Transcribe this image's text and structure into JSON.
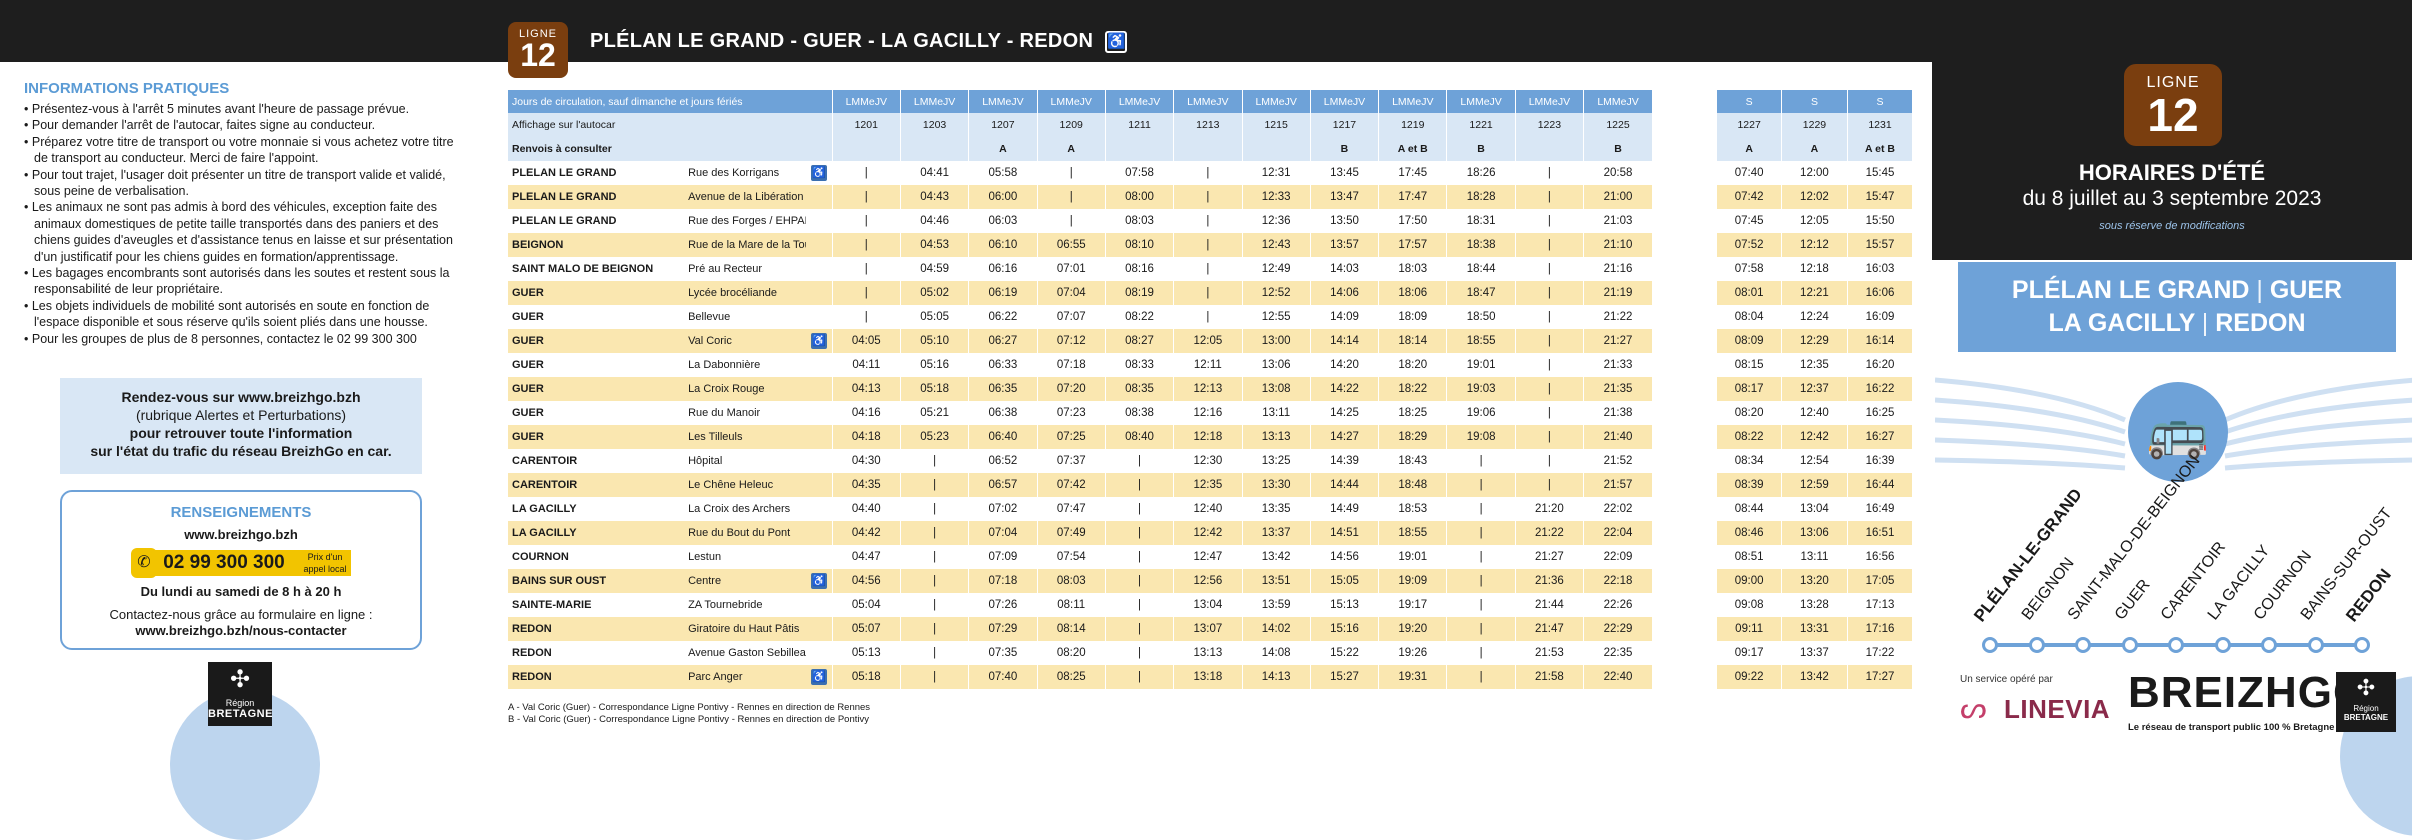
{
  "header": {
    "ligne_label": "LIGNE",
    "ligne_number": "12",
    "route_title": "PLÉLAN LE GRAND - GUER - LA GACILLY - REDON",
    "accessible_icon": "wheelchair-icon"
  },
  "right_panel": {
    "ligne_label": "LIGNE",
    "ligne_number": "12",
    "season_title": "HORAIRES D'ÉTÉ",
    "season_dates": "du 8 juillet au 3 septembre 2023",
    "season_note": "sous réserve de modifications",
    "dest1a": "PLÉLAN LE GRAND",
    "dest1b": "GUER",
    "dest2a": "LA GACILLY",
    "dest2b": "REDON",
    "sep": "|",
    "stops": [
      "PLÉLAN-LE-GRAND",
      "BEIGNON",
      "SAINT-MALO-DE-BEIGNON",
      "GUER",
      "CARENTOIR",
      "LA GACILLY",
      "COURNON",
      "BAINS-SUR-OUST",
      "REDON"
    ],
    "operated_by": "Un service opéré par",
    "operator": "LINEVIA",
    "brand": "BREIZHGO",
    "brand_tagline": "Le réseau de transport public 100 % Bretagne",
    "region_small": "Région",
    "region_name": "BRETAGNE"
  },
  "info": {
    "title": "INFORMATIONS PRATIQUES",
    "items": [
      "Présentez-vous à l'arrêt 5 minutes avant l'heure de passage prévue.",
      "Pour demander l'arrêt de l'autocar, faites signe au conducteur.",
      "Préparez votre titre de transport ou votre monnaie si vous achetez votre titre de transport au conducteur. Merci de faire l'appoint.",
      "Pour tout trajet, l'usager doit présenter un titre de transport valide et validé, sous peine de verbalisation.",
      "Les animaux ne sont pas admis à bord des véhicules, exception faite des animaux domestiques de petite taille transportés dans des paniers et des chiens guides d'aveugles et d'assistance tenus en laisse et sur présentation d'un justificatif pour les chiens guides en formation/apprentissage.",
      "Les bagages encombrants sont autorisés dans les soutes et restent sous la responsabilité de leur propriétaire.",
      "Les objets individuels de mobilité sont autorisés en soute en fonction de l'espace disponible et sous réserve qu'ils soient pliés dans une housse.",
      "Pour les groupes de plus de 8 personnes, contactez le 02 99 300 300"
    ],
    "web_box_line1": "Rendez-vous sur www.breizhgo.bzh",
    "web_box_line2": "(rubrique Alertes et Perturbations)",
    "web_box_line3": "pour retrouver toute l'information",
    "web_box_line4": "sur l'état du trafic du réseau BreizhGo en car.",
    "rens_title": "RENSEIGNEMENTS",
    "rens_www": "www.breizhgo.bzh",
    "phone": "02 99 300 300",
    "phone_note": "Prix d'un appel local",
    "hours": "Du lundi au samedi de 8 h à 20 h",
    "contact_line1": "Contactez-nous grâce au formulaire en ligne :",
    "contact_line2": "www.breizhgo.bzh/nous-contacter",
    "region_small": "Région",
    "region_name": "BRETAGNE"
  },
  "timetable": {
    "row_label_days": "Jours de circulation, sauf dimanche et jours fériés",
    "row_label_display": "Affichage sur l'autocar",
    "row_label_refs": "Renvois à consulter",
    "main_days": [
      "LMMeJV",
      "LMMeJV",
      "LMMeJV",
      "LMMeJV",
      "LMMeJV",
      "LMMeJV",
      "LMMeJV",
      "LMMeJV",
      "LMMeJV",
      "LMMeJV",
      "LMMeJV",
      "LMMeJV"
    ],
    "main_codes": [
      "1201",
      "1203",
      "1207",
      "1209",
      "1211",
      "1213",
      "1215",
      "1217",
      "1219",
      "1221",
      "1223",
      "1225"
    ],
    "main_refs": [
      "",
      "",
      "A",
      "A",
      "",
      "",
      "",
      "B",
      "A et B",
      "B",
      "",
      "B"
    ],
    "sat_days": [
      "S",
      "S",
      "S"
    ],
    "sat_codes": [
      "1227",
      "1229",
      "1231"
    ],
    "sat_refs": [
      "A",
      "A",
      "A et B"
    ],
    "rows": [
      {
        "town": "PLELAN LE GRAND",
        "stop": "Rue des Korrigans",
        "wc": true,
        "hl": false,
        "t": [
          "|",
          "04:41",
          "05:58",
          "|",
          "07:58",
          "|",
          "12:31",
          "13:45",
          "17:45",
          "18:26",
          "|",
          "20:58"
        ],
        "s": [
          "07:40",
          "12:00",
          "15:45"
        ]
      },
      {
        "town": "PLELAN LE GRAND",
        "stop": "Avenue de la Libération",
        "wc": false,
        "hl": true,
        "t": [
          "|",
          "04:43",
          "06:00",
          "|",
          "08:00",
          "|",
          "12:33",
          "13:47",
          "17:47",
          "18:28",
          "|",
          "21:00"
        ],
        "s": [
          "07:42",
          "12:02",
          "15:47"
        ]
      },
      {
        "town": "PLELAN LE GRAND",
        "stop": "Rue des Forges / EHPAD",
        "wc": false,
        "hl": false,
        "t": [
          "|",
          "04:46",
          "06:03",
          "|",
          "08:03",
          "|",
          "12:36",
          "13:50",
          "17:50",
          "18:31",
          "|",
          "21:03"
        ],
        "s": [
          "07:45",
          "12:05",
          "15:50"
        ]
      },
      {
        "town": "BEIGNON",
        "stop": "Rue de la Mare de la Toux",
        "wc": false,
        "hl": true,
        "t": [
          "|",
          "04:53",
          "06:10",
          "06:55",
          "08:10",
          "|",
          "12:43",
          "13:57",
          "17:57",
          "18:38",
          "|",
          "21:10"
        ],
        "s": [
          "07:52",
          "12:12",
          "15:57"
        ]
      },
      {
        "town": "SAINT MALO DE BEIGNON",
        "stop": "Pré au Recteur",
        "wc": false,
        "hl": false,
        "t": [
          "|",
          "04:59",
          "06:16",
          "07:01",
          "08:16",
          "|",
          "12:49",
          "14:03",
          "18:03",
          "18:44",
          "|",
          "21:16"
        ],
        "s": [
          "07:58",
          "12:18",
          "16:03"
        ]
      },
      {
        "town": "GUER",
        "stop": "Lycée brocéliande",
        "wc": false,
        "hl": true,
        "t": [
          "|",
          "05:02",
          "06:19",
          "07:04",
          "08:19",
          "|",
          "12:52",
          "14:06",
          "18:06",
          "18:47",
          "|",
          "21:19"
        ],
        "s": [
          "08:01",
          "12:21",
          "16:06"
        ]
      },
      {
        "town": "GUER",
        "stop": "Bellevue",
        "wc": false,
        "hl": false,
        "t": [
          "|",
          "05:05",
          "06:22",
          "07:07",
          "08:22",
          "|",
          "12:55",
          "14:09",
          "18:09",
          "18:50",
          "|",
          "21:22"
        ],
        "s": [
          "08:04",
          "12:24",
          "16:09"
        ]
      },
      {
        "town": "GUER",
        "stop": "Val Coric",
        "wc": true,
        "hl": true,
        "t": [
          "04:05",
          "05:10",
          "06:27",
          "07:12",
          "08:27",
          "12:05",
          "13:00",
          "14:14",
          "18:14",
          "18:55",
          "|",
          "21:27"
        ],
        "s": [
          "08:09",
          "12:29",
          "16:14"
        ]
      },
      {
        "town": "GUER",
        "stop": "La Dabonnière",
        "wc": false,
        "hl": false,
        "t": [
          "04:11",
          "05:16",
          "06:33",
          "07:18",
          "08:33",
          "12:11",
          "13:06",
          "14:20",
          "18:20",
          "19:01",
          "|",
          "21:33"
        ],
        "s": [
          "08:15",
          "12:35",
          "16:20"
        ]
      },
      {
        "town": "GUER",
        "stop": "La Croix Rouge",
        "wc": false,
        "hl": true,
        "t": [
          "04:13",
          "05:18",
          "06:35",
          "07:20",
          "08:35",
          "12:13",
          "13:08",
          "14:22",
          "18:22",
          "19:03",
          "|",
          "21:35"
        ],
        "s": [
          "08:17",
          "12:37",
          "16:22"
        ]
      },
      {
        "town": "GUER",
        "stop": "Rue du Manoir",
        "wc": false,
        "hl": false,
        "t": [
          "04:16",
          "05:21",
          "06:38",
          "07:23",
          "08:38",
          "12:16",
          "13:11",
          "14:25",
          "18:25",
          "19:06",
          "|",
          "21:38"
        ],
        "s": [
          "08:20",
          "12:40",
          "16:25"
        ]
      },
      {
        "town": "GUER",
        "stop": "Les Tilleuls",
        "wc": false,
        "hl": true,
        "t": [
          "04:18",
          "05:23",
          "06:40",
          "07:25",
          "08:40",
          "12:18",
          "13:13",
          "14:27",
          "18:29",
          "19:08",
          "|",
          "21:40"
        ],
        "s": [
          "08:22",
          "12:42",
          "16:27"
        ]
      },
      {
        "town": "CARENTOIR",
        "stop": "Hôpital",
        "wc": false,
        "hl": false,
        "t": [
          "04:30",
          "|",
          "06:52",
          "07:37",
          "|",
          "12:30",
          "13:25",
          "14:39",
          "18:43",
          "|",
          "|",
          "21:52"
        ],
        "s": [
          "08:34",
          "12:54",
          "16:39"
        ]
      },
      {
        "town": "CARENTOIR",
        "stop": "Le Chêne Heleuc",
        "wc": false,
        "hl": true,
        "t": [
          "04:35",
          "|",
          "06:57",
          "07:42",
          "|",
          "12:35",
          "13:30",
          "14:44",
          "18:48",
          "|",
          "|",
          "21:57"
        ],
        "s": [
          "08:39",
          "12:59",
          "16:44"
        ]
      },
      {
        "town": "LA GACILLY",
        "stop": "La Croix des Archers",
        "wc": false,
        "hl": false,
        "t": [
          "04:40",
          "|",
          "07:02",
          "07:47",
          "|",
          "12:40",
          "13:35",
          "14:49",
          "18:53",
          "|",
          "21:20",
          "22:02"
        ],
        "s": [
          "08:44",
          "13:04",
          "16:49"
        ]
      },
      {
        "town": "LA GACILLY",
        "stop": "Rue du Bout du Pont",
        "wc": false,
        "hl": true,
        "t": [
          "04:42",
          "|",
          "07:04",
          "07:49",
          "|",
          "12:42",
          "13:37",
          "14:51",
          "18:55",
          "|",
          "21:22",
          "22:04"
        ],
        "s": [
          "08:46",
          "13:06",
          "16:51"
        ]
      },
      {
        "town": "COURNON",
        "stop": "Lestun",
        "wc": false,
        "hl": false,
        "t": [
          "04:47",
          "|",
          "07:09",
          "07:54",
          "|",
          "12:47",
          "13:42",
          "14:56",
          "19:01",
          "|",
          "21:27",
          "22:09"
        ],
        "s": [
          "08:51",
          "13:11",
          "16:56"
        ]
      },
      {
        "town": "BAINS SUR OUST",
        "stop": "Centre",
        "wc": true,
        "hl": true,
        "t": [
          "04:56",
          "|",
          "07:18",
          "08:03",
          "|",
          "12:56",
          "13:51",
          "15:05",
          "19:09",
          "|",
          "21:36",
          "22:18"
        ],
        "s": [
          "09:00",
          "13:20",
          "17:05"
        ]
      },
      {
        "town": "SAINTE-MARIE",
        "stop": "ZA Tournebride",
        "wc": false,
        "hl": false,
        "t": [
          "05:04",
          "|",
          "07:26",
          "08:11",
          "|",
          "13:04",
          "13:59",
          "15:13",
          "19:17",
          "|",
          "21:44",
          "22:26"
        ],
        "s": [
          "09:08",
          "13:28",
          "17:13"
        ]
      },
      {
        "town": "REDON",
        "stop": "Giratoire du Haut Pâtis",
        "wc": false,
        "hl": true,
        "t": [
          "05:07",
          "|",
          "07:29",
          "08:14",
          "|",
          "13:07",
          "14:02",
          "15:16",
          "19:20",
          "|",
          "21:47",
          "22:29"
        ],
        "s": [
          "09:11",
          "13:31",
          "17:16"
        ]
      },
      {
        "town": "REDON",
        "stop": "Avenue Gaston Sebilleau",
        "wc": false,
        "hl": false,
        "t": [
          "05:13",
          "|",
          "07:35",
          "08:20",
          "|",
          "13:13",
          "14:08",
          "15:22",
          "19:26",
          "|",
          "21:53",
          "22:35"
        ],
        "s": [
          "09:17",
          "13:37",
          "17:22"
        ]
      },
      {
        "town": "REDON",
        "stop": "Parc Anger",
        "wc": true,
        "hl": true,
        "t": [
          "05:18",
          "|",
          "07:40",
          "08:25",
          "|",
          "13:18",
          "14:13",
          "15:27",
          "19:31",
          "|",
          "21:58",
          "22:40"
        ],
        "s": [
          "09:22",
          "13:42",
          "17:27"
        ]
      }
    ],
    "footnote_a": "A - Val Coric (Guer) - Correspondance Ligne Pontivy - Rennes en direction de Rennes",
    "footnote_b": "B - Val Coric (Guer) - Correspondance Ligne Pontivy - Rennes en direction de Pontivy",
    "wc_glyph": "♿"
  },
  "colors": {
    "header_bg": "#1e1e1e",
    "line_badge": "#7a3e0f",
    "accent_blue": "#6ea2d8",
    "light_blue": "#d9e7f5",
    "row_highlight": "#fae7b0",
    "phone_yellow": "#f2c400"
  }
}
